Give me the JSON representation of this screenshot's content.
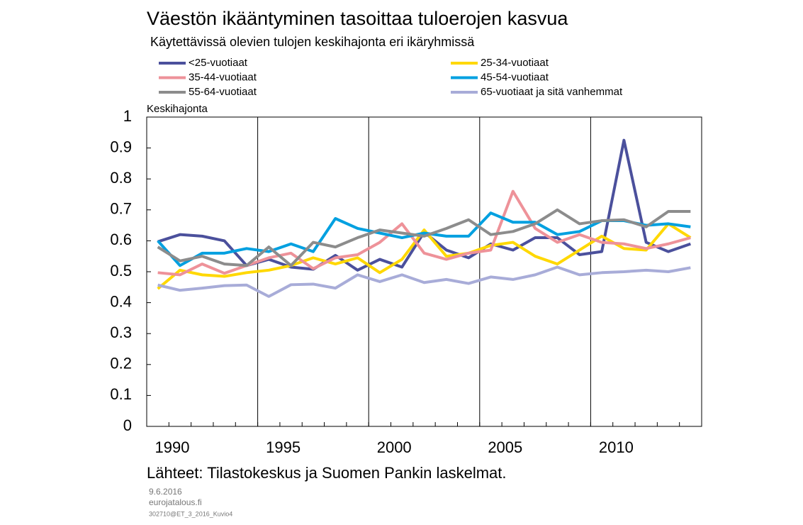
{
  "chart_data": {
    "type": "line",
    "title": "Väestön ikääntyminen tasoittaa tuloerojen kasvua",
    "subtitle": "Käytettävissä olevien tulojen keskihajonta eri ikäryhmissä",
    "y_label": "Keskihajonta",
    "source": "Lähteet: Tilastokeskus ja Suomen Pankin laskelmat.",
    "date": "9.6.2016",
    "website": "eurojatalous.fi",
    "code": "302710@ET_3_2016_Kuvio4",
    "categories": [
      "1990",
      null,
      null,
      null,
      null,
      "1995",
      null,
      null,
      null,
      null,
      "2000",
      null,
      null,
      null,
      null,
      "2005",
      null,
      null,
      null,
      null,
      "2010",
      null,
      null,
      null,
      null
    ],
    "ylim": [
      0,
      1
    ],
    "yticks": [
      0,
      0.1,
      0.2,
      0.3,
      0.4,
      0.5,
      0.6,
      0.7,
      0.8,
      0.9,
      1
    ],
    "grid": "x",
    "series": [
      {
        "name": "<25-vuotiaat",
        "color": "#4b509c",
        "values": [
          0.597,
          0.62,
          0.615,
          0.6,
          0.52,
          0.54,
          0.515,
          0.508,
          0.553,
          0.505,
          0.54,
          0.515,
          0.628,
          0.57,
          0.545,
          0.59,
          0.57,
          0.61,
          0.61,
          0.555,
          0.565,
          0.925,
          0.595,
          0.565,
          0.59
        ]
      },
      {
        "name": "25-34-vuotiaat",
        "color": "#ffd800",
        "values": [
          0.445,
          0.505,
          0.49,
          0.485,
          0.497,
          0.505,
          0.52,
          0.545,
          0.525,
          0.545,
          0.497,
          0.54,
          0.635,
          0.55,
          0.56,
          0.585,
          0.595,
          0.55,
          0.525,
          0.57,
          0.615,
          0.575,
          0.57,
          0.655,
          0.61
        ]
      },
      {
        "name": "35-44-vuotiaat",
        "color": "#ee9299",
        "values": [
          0.497,
          0.49,
          0.525,
          0.495,
          0.52,
          0.545,
          0.56,
          0.51,
          0.545,
          0.555,
          0.595,
          0.655,
          0.56,
          0.54,
          0.56,
          0.57,
          0.76,
          0.64,
          0.595,
          0.62,
          0.595,
          0.59,
          0.575,
          0.59,
          0.61
        ]
      },
      {
        "name": "45-54-vuotiaat",
        "color": "#00a0e0",
        "values": [
          0.6,
          0.52,
          0.56,
          0.56,
          0.575,
          0.565,
          0.59,
          0.565,
          0.672,
          0.64,
          0.625,
          0.61,
          0.625,
          0.615,
          0.615,
          0.69,
          0.66,
          0.66,
          0.62,
          0.63,
          0.665,
          0.665,
          0.65,
          0.655,
          0.645
        ]
      },
      {
        "name": "55-64-vuotiaat",
        "color": "#8c8c8c",
        "values": [
          0.58,
          0.535,
          0.55,
          0.525,
          0.52,
          0.58,
          0.52,
          0.595,
          0.58,
          0.61,
          0.635,
          0.625,
          0.615,
          0.64,
          0.668,
          0.62,
          0.63,
          0.655,
          0.7,
          0.655,
          0.665,
          0.668,
          0.645,
          0.695,
          0.695
        ]
      },
      {
        "name": "65-vuotiaat ja sitä vanhemmat",
        "color": "#a8acd8",
        "values": [
          0.457,
          0.44,
          0.447,
          0.455,
          0.457,
          0.42,
          0.458,
          0.46,
          0.447,
          0.49,
          0.468,
          0.49,
          0.465,
          0.475,
          0.462,
          0.483,
          0.475,
          0.49,
          0.515,
          0.49,
          0.497,
          0.5,
          0.505,
          0.5,
          0.513
        ]
      }
    ]
  }
}
